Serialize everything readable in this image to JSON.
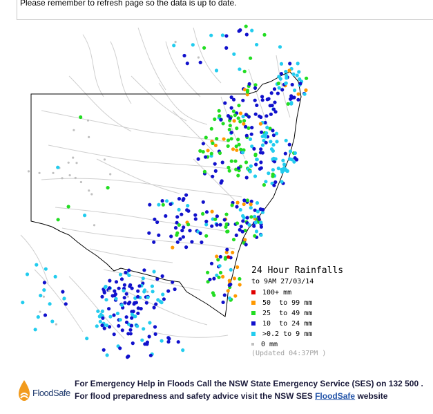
{
  "notice": {
    "text": "Please remember to refresh page so the data is up to date."
  },
  "map": {
    "title": "24 Hour Rainfalls",
    "subtitle": "to 9AM 27/03/14",
    "updated": "(Updated 04:37PM )",
    "colors": {
      "background": "#ffffff",
      "border": "#000000",
      "rivers": "#c8c8c8"
    },
    "legend": [
      {
        "label": "100+ mm",
        "color": "#e00000"
      },
      {
        "label": "50  to 99 mm",
        "color": "#ff9900"
      },
      {
        "label": "25  to 49 mm",
        "color": "#22dd22"
      },
      {
        "label": "10  to 24 mm",
        "color": "#1111cc"
      },
      {
        "label": ">0.2 to 9 mm",
        "color": "#22ccee"
      },
      {
        "label": "0 mm",
        "color": "#c0c0c0"
      }
    ]
  },
  "footer": {
    "logo_text": "FloodSafe",
    "line1": "For Emergency Help in Floods Call the NSW State Emergency Service (SES) on 132 500 .",
    "line2_prefix": "For flood preparedness and safety advice visit the NSW SES ",
    "line2_link": "FloodSafe",
    "line2_suffix": " website"
  }
}
